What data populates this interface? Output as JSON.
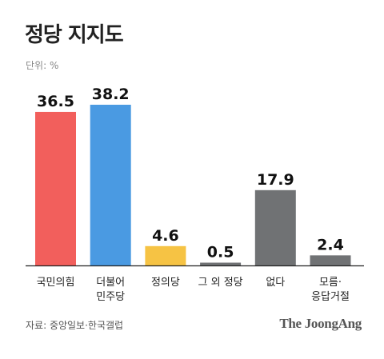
{
  "title": "정당 지지도",
  "unit": "단위: %",
  "source": "자료: 중앙일보·한국갤럽",
  "brand": "The JoongAng",
  "chart_data": {
    "type": "bar",
    "categories": [
      [
        "국민의힘"
      ],
      [
        "더불어",
        "민주당"
      ],
      [
        "정의당"
      ],
      [
        "그 외 정당"
      ],
      [
        "없다"
      ],
      [
        "모름·",
        "응답거절"
      ]
    ],
    "values": [
      36.5,
      38.2,
      4.6,
      0.5,
      17.9,
      2.4
    ],
    "value_labels": [
      "36.5",
      "38.2",
      "4.6",
      "0.5",
      "17.9",
      "2.4"
    ],
    "colors": [
      "#f25f5c",
      "#4a9ae2",
      "#f6c344",
      "#707274",
      "#707274",
      "#707274"
    ],
    "ylim": [
      0,
      38.2
    ],
    "grid": false
  }
}
